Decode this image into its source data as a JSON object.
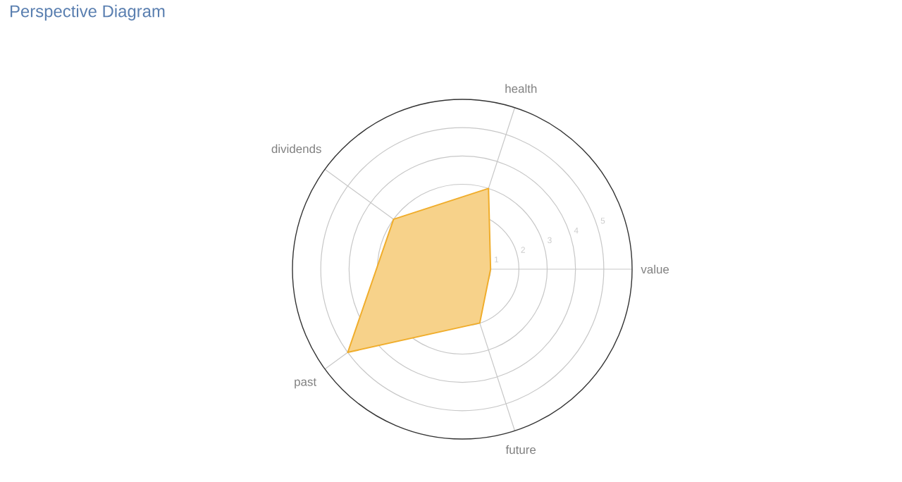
{
  "chart_data": {
    "type": "radar",
    "title": "Perspective Diagram",
    "categories": [
      "health",
      "value",
      "future",
      "past",
      "dividends"
    ],
    "series": [
      {
        "color": "#f0ad2b",
        "values": [
          3,
          1,
          2,
          5,
          3
        ]
      }
    ],
    "ylim": [
      0,
      6
    ],
    "yticks": [
      1,
      2,
      3,
      4,
      5
    ],
    "grid": true
  }
}
